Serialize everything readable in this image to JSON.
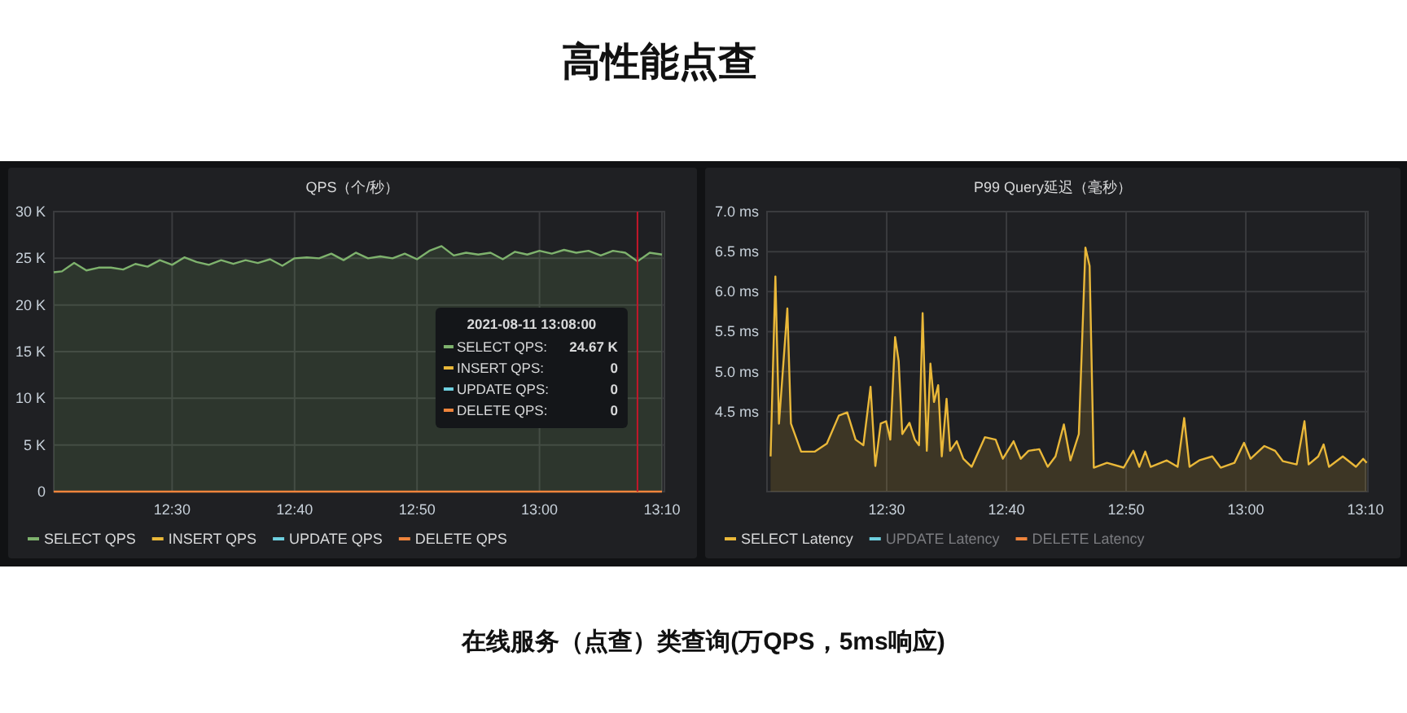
{
  "chart_data": [
    {
      "type": "other",
      "title": "高性能点查",
      "annotations": [
        "在线服务（点查）类查询(万QPS，5ms响应)"
      ]
    },
    {
      "type": "area",
      "title": "QPS（个/秒）",
      "grid": true,
      "legend": "bottom left",
      "x": [
        "2021-08-11T12:20:20",
        "2021-08-11T12:21:00",
        "2021-08-11T12:22:00",
        "2021-08-11T12:23:00",
        "2021-08-11T12:24:00",
        "2021-08-11T12:25:00",
        "2021-08-11T12:26:00",
        "2021-08-11T12:27:00",
        "2021-08-11T12:28:00",
        "2021-08-11T12:29:00",
        "2021-08-11T12:30:00",
        "2021-08-11T12:31:00",
        "2021-08-11T12:32:00",
        "2021-08-11T12:33:00",
        "2021-08-11T12:34:00",
        "2021-08-11T12:35:00",
        "2021-08-11T12:36:00",
        "2021-08-11T12:37:00",
        "2021-08-11T12:38:00",
        "2021-08-11T12:39:00",
        "2021-08-11T12:40:00",
        "2021-08-11T12:41:00",
        "2021-08-11T12:42:00",
        "2021-08-11T12:43:00",
        "2021-08-11T12:44:00",
        "2021-08-11T12:45:00",
        "2021-08-11T12:46:00",
        "2021-08-11T12:47:00",
        "2021-08-11T12:48:00",
        "2021-08-11T12:49:00",
        "2021-08-11T12:50:00",
        "2021-08-11T12:51:00",
        "2021-08-11T12:52:00",
        "2021-08-11T12:53:00",
        "2021-08-11T12:54:00",
        "2021-08-11T12:55:00",
        "2021-08-11T12:56:00",
        "2021-08-11T12:57:00",
        "2021-08-11T12:58:00",
        "2021-08-11T12:59:00",
        "2021-08-11T13:00:00",
        "2021-08-11T13:01:00",
        "2021-08-11T13:02:00",
        "2021-08-11T13:03:00",
        "2021-08-11T13:04:00",
        "2021-08-11T13:05:00",
        "2021-08-11T13:06:00",
        "2021-08-11T13:07:00",
        "2021-08-11T13:08:00",
        "2021-08-11T13:09:00",
        "2021-08-11T13:10:00"
      ],
      "xlim": [
        "2021-08-11T12:20:20",
        "2021-08-11T13:10:12"
      ],
      "xticks": [
        {
          "value": "2021-08-11T12:30:00",
          "label": "12:30"
        },
        {
          "value": "2021-08-11T12:40:00",
          "label": "12:40"
        },
        {
          "value": "2021-08-11T12:50:00",
          "label": "12:50"
        },
        {
          "value": "2021-08-11T13:00:00",
          "label": "13:00"
        },
        {
          "value": "2021-08-11T13:10:00",
          "label": "13:10"
        }
      ],
      "ylim": [
        0,
        30000
      ],
      "yticks": [
        {
          "value": 0,
          "label": "0"
        },
        {
          "value": 5000,
          "label": "5 K"
        },
        {
          "value": 10000,
          "label": "10 K"
        },
        {
          "value": 15000,
          "label": "15 K"
        },
        {
          "value": 20000,
          "label": "20 K"
        },
        {
          "value": 25000,
          "label": "25 K"
        },
        {
          "value": 30000,
          "label": "30 K"
        }
      ],
      "ref_lines": [
        {
          "axis": "x",
          "value": "2021-08-11T13:08:00",
          "color": "#c4162a"
        }
      ],
      "annotations": [
        "2021-08-11 13:08:00",
        "SELECT QPS:",
        "24.67 K",
        "INSERT QPS:",
        "0",
        "UPDATE QPS:",
        "0",
        "DELETE QPS:",
        "0"
      ],
      "series": [
        {
          "name": "SELECT QPS",
          "color": "#7eb26d",
          "values": [
            23500,
            23600,
            24500,
            23700,
            24000,
            24000,
            23800,
            24400,
            24100,
            24800,
            24300,
            25100,
            24600,
            24300,
            24800,
            24400,
            24800,
            24500,
            24900,
            24200,
            25000,
            25100,
            25000,
            25500,
            24800,
            25600,
            25000,
            25200,
            25000,
            25500,
            24900,
            25800,
            26300,
            25300,
            25600,
            25400,
            25600,
            24900,
            25700,
            25400,
            25800,
            25500,
            25900,
            25600,
            25800,
            25300,
            25800,
            25600,
            24670,
            25600,
            25400
          ]
        },
        {
          "name": "INSERT QPS",
          "color": "#eab839",
          "values": [
            null,
            null,
            null,
            null,
            null,
            null,
            null,
            null,
            null,
            null,
            null,
            null,
            null,
            null,
            null,
            null,
            null,
            null,
            null,
            null,
            null,
            null,
            null,
            null,
            null,
            null,
            null,
            null,
            null,
            null,
            null,
            null,
            null,
            null,
            null,
            null,
            null,
            null,
            null,
            null,
            null,
            null,
            null,
            null,
            null,
            null,
            null,
            null,
            null,
            null,
            null
          ]
        },
        {
          "name": "UPDATE QPS",
          "color": "#6ed0e0",
          "values": [
            null,
            null,
            null,
            null,
            null,
            null,
            null,
            null,
            null,
            null,
            null,
            null,
            null,
            null,
            null,
            null,
            null,
            null,
            null,
            null,
            null,
            null,
            null,
            null,
            null,
            null,
            null,
            null,
            null,
            null,
            null,
            null,
            null,
            null,
            null,
            null,
            null,
            null,
            null,
            null,
            null,
            null,
            null,
            null,
            null,
            null,
            null,
            null,
            null,
            null,
            null
          ]
        },
        {
          "name": "DELETE QPS",
          "type": "line",
          "color": "#ef843c",
          "values": [
            0,
            0,
            0,
            0,
            0,
            0,
            0,
            0,
            0,
            0,
            0,
            0,
            0,
            0,
            0,
            0,
            0,
            0,
            0,
            0,
            0,
            0,
            0,
            0,
            0,
            0,
            0,
            0,
            0,
            0,
            0,
            0,
            0,
            0,
            0,
            0,
            0,
            0,
            0,
            0,
            0,
            0,
            0,
            0,
            0,
            0,
            0,
            0,
            0,
            0,
            0
          ]
        }
      ]
    },
    {
      "type": "area",
      "title": "P99 Query延迟（毫秒）",
      "grid": true,
      "legend": "bottom left",
      "xlim": [
        "2021-08-11T12:20:00",
        "2021-08-11T13:10:12"
      ],
      "xticks": [
        {
          "value": "2021-08-11T12:30:00",
          "label": "12:30"
        },
        {
          "value": "2021-08-11T12:40:00",
          "label": "12:40"
        },
        {
          "value": "2021-08-11T12:50:00",
          "label": "12:50"
        },
        {
          "value": "2021-08-11T13:00:00",
          "label": "13:00"
        },
        {
          "value": "2021-08-11T13:10:00",
          "label": "13:10"
        }
      ],
      "ylim": [
        3.5,
        7.0
      ],
      "yticks": [
        {
          "value": 4.5,
          "label": "4.5 ms"
        },
        {
          "value": 5.0,
          "label": "5.0 ms"
        },
        {
          "value": 5.5,
          "label": "5.5 ms"
        },
        {
          "value": 6.0,
          "label": "6.0 ms"
        },
        {
          "value": 6.5,
          "label": "6.5 ms"
        },
        {
          "value": 7.0,
          "label": "7.0 ms"
        }
      ],
      "series": [
        {
          "name": "SELECT Latency",
          "color": "#eab839",
          "x": [
            "2021-08-11T12:20:18",
            "2021-08-11T12:20:42",
            "2021-08-11T12:21:00",
            "2021-08-11T12:21:42",
            "2021-08-11T12:22:00",
            "2021-08-11T12:22:51",
            "2021-08-11T12:24:00",
            "2021-08-11T12:25:00",
            "2021-08-11T12:26:00",
            "2021-08-11T12:26:42",
            "2021-08-11T12:27:24",
            "2021-08-11T12:28:03",
            "2021-08-11T12:28:39",
            "2021-08-11T12:29:03",
            "2021-08-11T12:29:30",
            "2021-08-11T12:29:57",
            "2021-08-11T12:30:18",
            "2021-08-11T12:30:42",
            "2021-08-11T12:31:00",
            "2021-08-11T12:31:18",
            "2021-08-11T12:31:54",
            "2021-08-11T12:32:21",
            "2021-08-11T12:32:42",
            "2021-08-11T12:33:00",
            "2021-08-11T12:33:21",
            "2021-08-11T12:33:39",
            "2021-08-11T12:33:57",
            "2021-08-11T12:34:18",
            "2021-08-11T12:34:36",
            "2021-08-11T12:35:00",
            "2021-08-11T12:35:18",
            "2021-08-11T12:35:51",
            "2021-08-11T12:36:24",
            "2021-08-11T12:37:06",
            "2021-08-11T12:38:12",
            "2021-08-11T12:39:06",
            "2021-08-11T12:39:42",
            "2021-08-11T12:40:36",
            "2021-08-11T12:41:12",
            "2021-08-11T12:41:51",
            "2021-08-11T12:42:45",
            "2021-08-11T12:43:27",
            "2021-08-11T12:44:06",
            "2021-08-11T12:44:48",
            "2021-08-11T12:45:21",
            "2021-08-11T12:46:03",
            "2021-08-11T12:46:36",
            "2021-08-11T12:46:57",
            "2021-08-11T12:47:18",
            "2021-08-11T12:48:24",
            "2021-08-11T12:49:48",
            "2021-08-11T12:50:36",
            "2021-08-11T12:51:06",
            "2021-08-11T12:51:36",
            "2021-08-11T12:52:03",
            "2021-08-11T12:53:24",
            "2021-08-11T12:54:18",
            "2021-08-11T12:54:51",
            "2021-08-11T12:55:18",
            "2021-08-11T12:56:06",
            "2021-08-11T12:57:12",
            "2021-08-11T12:57:54",
            "2021-08-11T12:59:03",
            "2021-08-11T12:59:51",
            "2021-08-11T13:00:24",
            "2021-08-11T13:01:33",
            "2021-08-11T13:02:27",
            "2021-08-11T13:03:06",
            "2021-08-11T13:04:15",
            "2021-08-11T13:04:54",
            "2021-08-11T13:05:15",
            "2021-08-11T13:06:03",
            "2021-08-11T13:06:30",
            "2021-08-11T13:06:57",
            "2021-08-11T13:08:06",
            "2021-08-11T13:09:12",
            "2021-08-11T13:09:48",
            "2021-08-11T13:10:06"
          ],
          "values": [
            3.94,
            6.19,
            4.35,
            5.79,
            4.35,
            4.0,
            4.0,
            4.1,
            4.45,
            4.49,
            4.15,
            4.08,
            4.81,
            3.82,
            4.35,
            4.38,
            4.15,
            5.43,
            5.13,
            4.22,
            4.36,
            4.15,
            4.08,
            5.73,
            4.01,
            5.1,
            4.62,
            4.83,
            3.94,
            4.66,
            4.01,
            4.13,
            3.91,
            3.81,
            4.18,
            4.15,
            3.91,
            4.13,
            3.91,
            4.01,
            4.03,
            3.81,
            3.94,
            4.34,
            3.89,
            4.22,
            6.55,
            6.32,
            3.8,
            3.86,
            3.8,
            4.01,
            3.81,
            4.0,
            3.81,
            3.89,
            3.81,
            4.42,
            3.81,
            3.89,
            3.94,
            3.8,
            3.86,
            4.11,
            3.91,
            4.07,
            4.01,
            3.88,
            3.84,
            4.38,
            3.84,
            3.94,
            4.09,
            3.81,
            3.94,
            3.81,
            3.91,
            3.86
          ]
        },
        {
          "name": "UPDATE Latency",
          "color": "#6ed0e0"
        },
        {
          "name": "DELETE Latency",
          "color": "#ef843c"
        }
      ]
    }
  ]
}
